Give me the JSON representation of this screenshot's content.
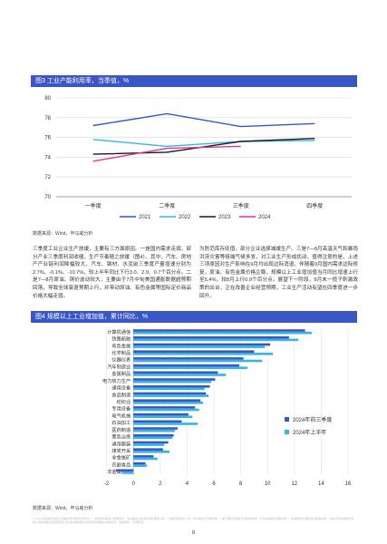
{
  "figure3": {
    "title": "图3 工业产能利用率，当季值，%",
    "source": "数据来源：Wind，毕马威分析",
    "chart_data": {
      "type": "line",
      "categories": [
        "一季度",
        "二季度",
        "三季度",
        "四季度"
      ],
      "ylim": [
        70,
        80
      ],
      "yticks": [
        "70",
        "72",
        "74",
        "76",
        "78",
        "80"
      ],
      "series": [
        {
          "name": "2021",
          "color": "#3a55c4",
          "values": [
            77.2,
            78.4,
            77.1,
            77.4
          ]
        },
        {
          "name": "2022",
          "color": "#35b5e5",
          "values": [
            75.8,
            75.1,
            75.6,
            75.7
          ]
        },
        {
          "name": "2023",
          "color": "#1a1a1a",
          "values": [
            74.3,
            74.5,
            75.6,
            75.9
          ]
        },
        {
          "name": "2024",
          "color": "#e0358e",
          "values": [
            73.6,
            74.9,
            75.1,
            null
          ]
        }
      ]
    }
  },
  "text_left": "三季度工业企业生产放缓，主要有三方面原因。一是国内需求走弱，部分产业三季度利润收缩，生产节奏随之放缓（图4）。其中，汽车、房地产产业链利润降幅较大，汽车、钢材、水泥前三季度产量增速分别为2.7%、-0.1%、-10.7%，较上半年同比下行3.0、2.9、0.7个百分点。二是7—8月原油、铜价波动较大，主要由于7月中旬美国通胀数据超预期回落，导致全球衰退预期上行，并带动原油、有色金属等国际定价商品价格大幅走弱。",
  "text_right": "为防范库存贬值，部分企业选择减缓生产。三是7—8月高温天气和暴雨洪涝灾害等极端气候多发，对工业生产形成扰动。值得注意的是，上述三项原因对生产影响在9月均出现边际消退。伴随着9月国内需求边际修复，原油、有色金属价格企稳，规模以上工业增加值当月同比增速上行至5.4%，较8月上行0.9个百分点。展望下一阶段，9月末一揽子刺激政策的出台，正在改善企业经营预期，工业生产活动有望在四季度进一步回升。",
  "figure4": {
    "title": "图4 规模以上工业增加值，累计同比，%",
    "source": "数据来源：Wind，毕马威分析",
    "chart_data": {
      "type": "bar",
      "orientation": "horizontal",
      "xlim": [
        -4,
        16
      ],
      "xticks": [
        "-2",
        "0",
        "2",
        "4",
        "6",
        "8",
        "10",
        "12",
        "14",
        "16"
      ],
      "series": [
        {
          "name": "2024年前三季度",
          "color": "#3a55c4"
        },
        {
          "name": "2024年上半年",
          "color": "#35b5e5"
        }
      ],
      "categories": [
        {
          "label": "计算机通信",
          "v1": 12.8,
          "v2": 13.3
        },
        {
          "label": "铁路船舶",
          "v1": 11.6,
          "v2": 12.3
        },
        {
          "label": "有色金属",
          "v1": 10.2,
          "v2": 9.8
        },
        {
          "label": "化学制品",
          "v1": 9.0,
          "v2": 10.4
        },
        {
          "label": "仪器仪表",
          "v1": 8.2,
          "v2": 9.6
        },
        {
          "label": "汽车制造业",
          "v1": 7.9,
          "v2": 8.5
        },
        {
          "label": "金属制品",
          "v1": 6.3,
          "v2": 6.9
        },
        {
          "label": "电力热力生产",
          "v1": 6.1,
          "v2": 5.8
        },
        {
          "label": "通用设备",
          "v1": 5.7,
          "v2": 5.3
        },
        {
          "label": "食品制造",
          "v1": 5.4,
          "v2": 5.6
        },
        {
          "label": "纺织业",
          "v1": 5.0,
          "v2": 5.2
        },
        {
          "label": "专用设备",
          "v1": 4.6,
          "v2": 4.9
        },
        {
          "label": "电气机械",
          "v1": 4.1,
          "v2": 4.4
        },
        {
          "label": "石油加工",
          "v1": 3.6,
          "v2": 4.8
        },
        {
          "label": "医药制造",
          "v1": 3.3,
          "v2": 3.1
        },
        {
          "label": "黑色冶炼",
          "v1": 3.0,
          "v2": 2.9
        },
        {
          "label": "通用服装",
          "v1": 2.6,
          "v2": 2.3
        },
        {
          "label": "煤炭开采",
          "v1": 2.2,
          "v2": 2.7
        },
        {
          "label": "非金属矿",
          "v1": 1.5,
          "v2": 1.8
        },
        {
          "label": "农副食品",
          "v1": 0.9,
          "v2": 1.0
        },
        {
          "label": "非金属矿物",
          "v1": -1.3,
          "v2": -0.8
        }
      ]
    }
  },
  "footer_text": "© 2024 毕马威华振会计师事务所(特殊普通合伙) — 中国合伙制会计师事务所，毕马威企业咨询(中国)有限公司 — 中国有限责任公司，毕马威会计师事务所 — 澳门特别行政区合伙制事务所，及毕马威会计师事务所 — 香港特别行政区合伙制事务所，均是与毕马威国际有限公司(英国私营担保有限公司)相关联的独立成员所全球组织中的成员。版权所有，不得转载。",
  "page_number": "8"
}
